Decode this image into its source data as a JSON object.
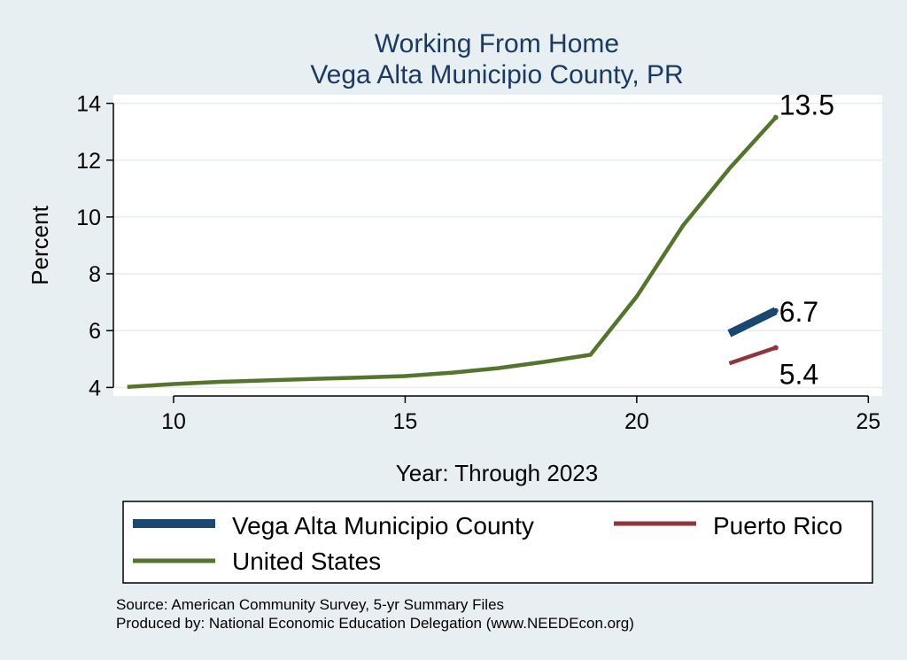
{
  "chart_data": {
    "type": "line",
    "title": "Working From Home",
    "subtitle": "Vega Alta Municipio County, PR",
    "xlabel": "Year: Through 2023",
    "ylabel": "Percent",
    "xlim": [
      8.7,
      25.3
    ],
    "ylim": [
      3.7,
      14.3
    ],
    "x_ticks": [
      10,
      15,
      20,
      25
    ],
    "y_ticks": [
      4,
      6,
      8,
      10,
      12,
      14
    ],
    "grid": true,
    "legend_position": "bottom",
    "series": [
      {
        "name": "Vega Alta Municipio County",
        "color": "#1a476f",
        "x": [
          22,
          23
        ],
        "values": [
          5.9,
          6.7
        ],
        "end_label": "6.7"
      },
      {
        "name": "Puerto Rico",
        "color": "#90353b",
        "x": [
          22,
          23
        ],
        "values": [
          4.85,
          5.4
        ],
        "end_label": "5.4"
      },
      {
        "name": "United States",
        "color": "#55752f",
        "x": [
          9,
          10,
          11,
          12,
          13,
          14,
          15,
          16,
          17,
          18,
          19,
          20,
          21,
          22,
          23
        ],
        "values": [
          4.02,
          4.12,
          4.2,
          4.25,
          4.3,
          4.35,
          4.4,
          4.52,
          4.68,
          4.9,
          5.15,
          7.2,
          9.7,
          11.7,
          13.5
        ],
        "end_label": "13.5"
      }
    ]
  },
  "source_line_1": "Source: American Community Survey, 5-yr Summary Files",
  "source_line_2": "Produced by: National Economic Education Delegation (www.NEEDEcon.org)"
}
